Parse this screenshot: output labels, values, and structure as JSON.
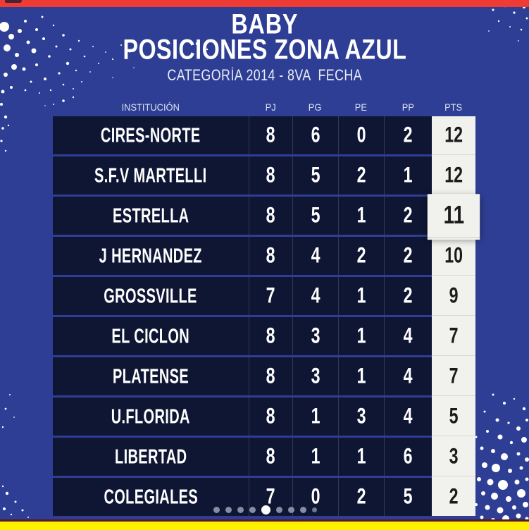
{
  "header": {
    "title_line1": "BABY",
    "title_line2": "POSICIONES ZONA AZUL",
    "subtitle": "CATEGORÍA 2014 - 8VA  FECHA"
  },
  "chart_data": {
    "type": "table",
    "title": "BABY POSICIONES ZONA AZUL",
    "subtitle": "CATEGORÍA 2014 - 8VA FECHA",
    "columns": [
      "INSTITUCIÓN",
      "PJ",
      "PG",
      "PE",
      "PP",
      "PTS"
    ],
    "rows": [
      {
        "team": "CIRES-NORTE",
        "pj": 8,
        "pg": 6,
        "pe": 0,
        "pp": 2,
        "pts": 12,
        "highlighted": false
      },
      {
        "team": "S.F.V MARTELLI",
        "pj": 8,
        "pg": 5,
        "pe": 2,
        "pp": 1,
        "pts": 12,
        "highlighted": false
      },
      {
        "team": "ESTRELLA",
        "pj": 8,
        "pg": 5,
        "pe": 1,
        "pp": 2,
        "pts": 11,
        "highlighted": true
      },
      {
        "team": "J HERNANDEZ",
        "pj": 8,
        "pg": 4,
        "pe": 2,
        "pp": 2,
        "pts": 10,
        "highlighted": false
      },
      {
        "team": "GROSSVILLE",
        "pj": 7,
        "pg": 4,
        "pe": 1,
        "pp": 2,
        "pts": 9,
        "highlighted": false
      },
      {
        "team": "EL CICLON",
        "pj": 8,
        "pg": 3,
        "pe": 1,
        "pp": 4,
        "pts": 7,
        "highlighted": false
      },
      {
        "team": "PLATENSE",
        "pj": 8,
        "pg": 3,
        "pe": 1,
        "pp": 4,
        "pts": 7,
        "highlighted": false
      },
      {
        "team": "U.FLORIDA",
        "pj": 8,
        "pg": 1,
        "pe": 3,
        "pp": 4,
        "pts": 5,
        "highlighted": false
      },
      {
        "team": "LIBERTAD",
        "pj": 8,
        "pg": 1,
        "pe": 1,
        "pp": 6,
        "pts": 3,
        "highlighted": false
      },
      {
        "team": "COLEGIALES",
        "pj": 7,
        "pg": 0,
        "pe": 2,
        "pp": 5,
        "pts": 2,
        "highlighted": false
      }
    ]
  },
  "carousel": {
    "total_dots": 9,
    "active_index": 4
  },
  "colors": {
    "background_blue": "#2e3e94",
    "row_navy": "#0e1634",
    "top_bar_red": "#ee3b33",
    "bottom_bar_yellow": "#fdf100",
    "pts_strip": "#f1f1ee",
    "pts_text": "#1b1b1b",
    "dot_inactive": "#9399ad",
    "dot_active": "#ffffff",
    "splatter": "#ffffff"
  }
}
